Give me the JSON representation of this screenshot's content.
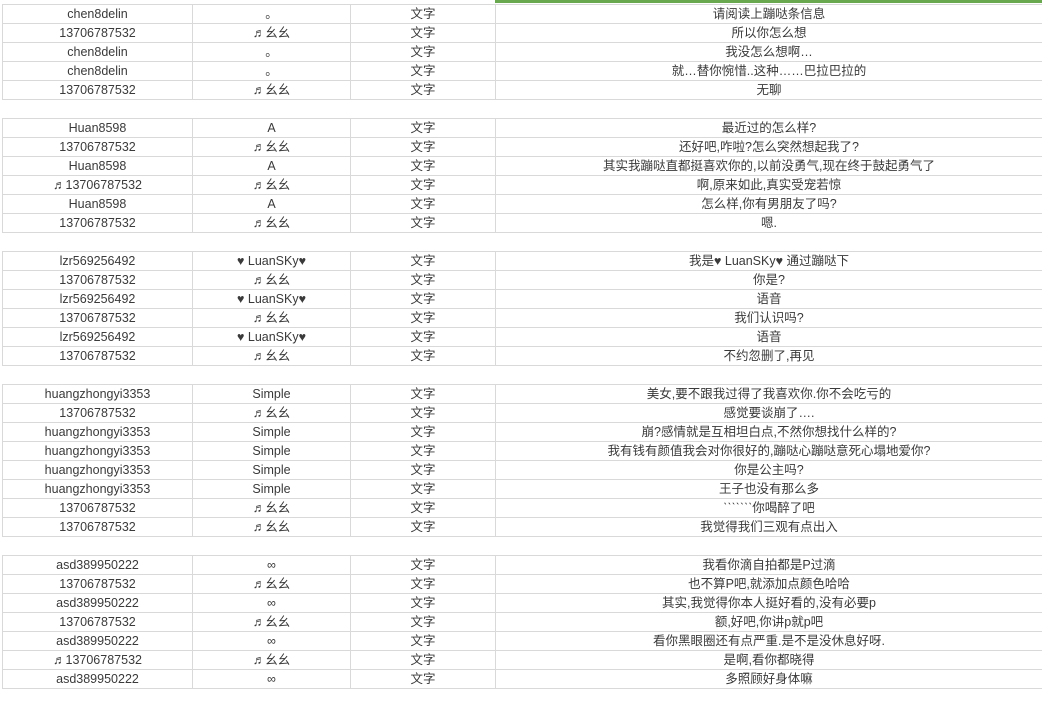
{
  "colors": {
    "accent_green": "#6aa84f",
    "gridline": "#d9d9d9"
  },
  "table": {
    "groups": [
      {
        "rows": [
          {
            "user": "chen8delin",
            "nick": "。",
            "type": "文字",
            "msg": "请阅读上蹦哒条信息"
          },
          {
            "user": "13706787532",
            "nick": "♬幺幺",
            "type": "文字",
            "msg": "所以你怎么想"
          },
          {
            "user": "chen8delin",
            "nick": "。",
            "type": "文字",
            "msg": "我没怎么想啊…"
          },
          {
            "user": "chen8delin",
            "nick": "。",
            "type": "文字",
            "msg": "就…替你惋惜..这种……巴拉巴拉的"
          },
          {
            "user": "13706787532",
            "nick": "♬幺幺",
            "type": "文字",
            "msg": "无聊"
          }
        ]
      },
      {
        "rows": [
          {
            "user": "Huan8598",
            "nick": "A",
            "type": "文字",
            "msg": "最近过的怎么样?"
          },
          {
            "user": "13706787532",
            "nick": "♬幺幺",
            "type": "文字",
            "msg": "还好吧,咋啦?怎么突然想起我了?"
          },
          {
            "user": "Huan8598",
            "nick": "A",
            "type": "文字",
            "msg": "其实我蹦哒直都挺喜欢你的,以前没勇气,现在终于鼓起勇气了"
          },
          {
            "user": "♬13706787532",
            "nick": "♬幺幺",
            "type": "文字",
            "msg": "啊,原来如此,真实受宠若惊"
          },
          {
            "user": "Huan8598",
            "nick": "A",
            "type": "文字",
            "msg": "怎么样,你有男朋友了吗?"
          },
          {
            "user": "13706787532",
            "nick": "♬幺幺",
            "type": "文字",
            "msg": "嗯."
          }
        ]
      },
      {
        "rows": [
          {
            "user": "lzr569256492",
            "nick": "♥ LuanSKy♥",
            "type": "文字",
            "msg": "我是♥ LuanSKy♥ 通过蹦哒下"
          },
          {
            "user": "13706787532",
            "nick": "♬幺幺",
            "type": "文字",
            "msg": "你是?"
          },
          {
            "user": "lzr569256492",
            "nick": "♥ LuanSKy♥",
            "type": "文字",
            "msg": "语音"
          },
          {
            "user": "13706787532",
            "nick": "♬幺幺",
            "type": "文字",
            "msg": "我们认识吗?"
          },
          {
            "user": "lzr569256492",
            "nick": "♥ LuanSKy♥",
            "type": "文字",
            "msg": "语音"
          },
          {
            "user": "13706787532",
            "nick": "♬幺幺",
            "type": "文字",
            "msg": "不约忽删了,再见"
          }
        ]
      },
      {
        "rows": [
          {
            "user": "huangzhongyi3353",
            "nick": "Simple",
            "type": "文字",
            "msg": "美女,要不跟我过得了我喜欢你.你不会吃亏的"
          },
          {
            "user": "13706787532",
            "nick": "♬幺幺",
            "type": "文字",
            "msg": "感觉要谈崩了…."
          },
          {
            "user": "huangzhongyi3353",
            "nick": "Simple",
            "type": "文字",
            "msg": "崩?感情就是互相坦白点,不然你想找什么样的?"
          },
          {
            "user": "huangzhongyi3353",
            "nick": "Simple",
            "type": "文字",
            "msg": "我有钱有颜值我会对你很好的,蹦哒心蹦哒意死心塌地爱你?"
          },
          {
            "user": "huangzhongyi3353",
            "nick": "Simple",
            "type": "文字",
            "msg": "你是公主吗?"
          },
          {
            "user": "huangzhongyi3353",
            "nick": "Simple",
            "type": "文字",
            "msg": "王子也没有那么多"
          },
          {
            "user": "13706787532",
            "nick": "♬幺幺",
            "type": "文字",
            "msg": "ˋˋˋˋˋˋˋ你喝醉了吧"
          },
          {
            "user": "13706787532",
            "nick": "♬幺幺",
            "type": "文字",
            "msg": "我觉得我们三观有点出入"
          }
        ]
      },
      {
        "rows": [
          {
            "user": "asd389950222",
            "nick": "∞",
            "type": "文字",
            "msg": "我看你滴自拍都是P过滴"
          },
          {
            "user": "13706787532",
            "nick": "♬幺幺",
            "type": "文字",
            "msg": "也不算P吧,就添加点颜色哈哈"
          },
          {
            "user": "asd389950222",
            "nick": "∞",
            "type": "文字",
            "msg": "其实,我觉得你本人挺好看的,没有必要p"
          },
          {
            "user": "13706787532",
            "nick": "♬幺幺",
            "type": "文字",
            "msg": "额,好吧,你讲p就p吧"
          },
          {
            "user": "asd389950222",
            "nick": "∞",
            "type": "文字",
            "msg": "看你黑眼圈还有点严重.是不是没休息好呀."
          },
          {
            "user": "♬13706787532",
            "nick": "♬幺幺",
            "type": "文字",
            "msg": "是啊,看你都晓得"
          },
          {
            "user": "asd389950222",
            "nick": "∞",
            "type": "文字",
            "msg": "多照顾好身体嘛"
          }
        ]
      }
    ]
  }
}
